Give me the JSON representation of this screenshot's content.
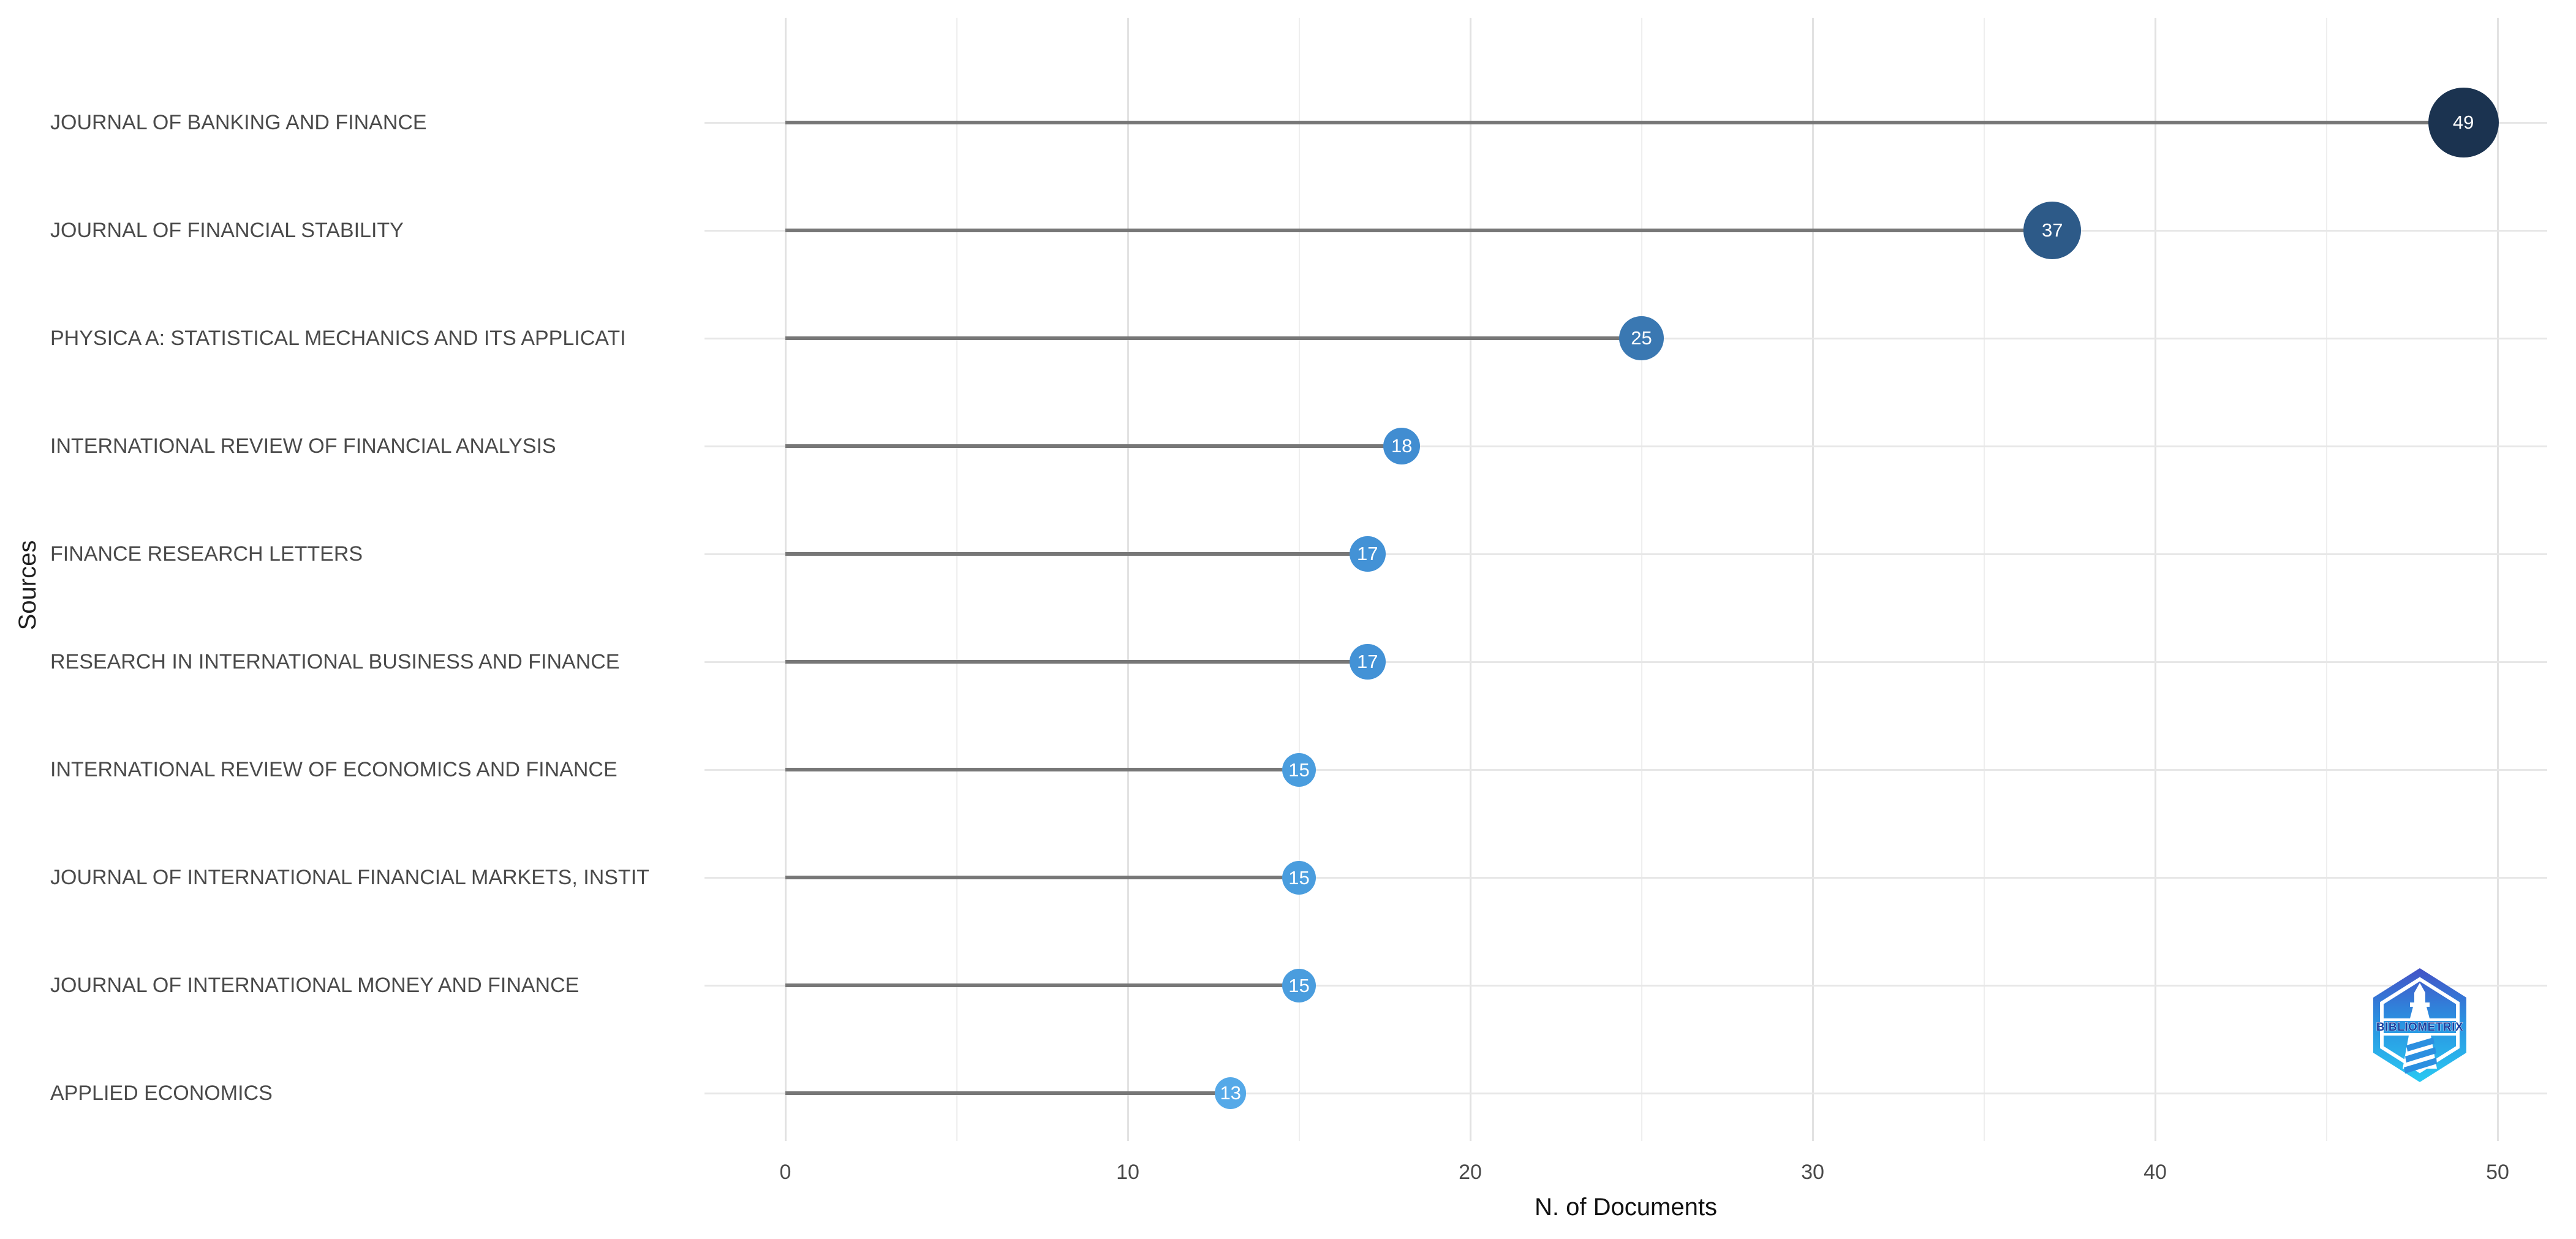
{
  "chart_data": {
    "type": "lollipop",
    "orientation": "horizontal",
    "title": "",
    "xlabel": "N. of Documents",
    "ylabel": "Sources",
    "categories": [
      "JOURNAL OF BANKING AND FINANCE",
      "JOURNAL OF FINANCIAL STABILITY",
      "PHYSICA A: STATISTICAL MECHANICS AND ITS APPLICATI",
      "INTERNATIONAL REVIEW OF FINANCIAL ANALYSIS",
      "FINANCE RESEARCH LETTERS",
      "RESEARCH IN INTERNATIONAL BUSINESS AND FINANCE",
      "INTERNATIONAL REVIEW OF ECONOMICS AND FINANCE",
      "JOURNAL OF INTERNATIONAL FINANCIAL MARKETS, INSTIT",
      "JOURNAL OF INTERNATIONAL MONEY AND FINANCE",
      "APPLIED ECONOMICS"
    ],
    "values": [
      49,
      37,
      25,
      18,
      17,
      17,
      15,
      15,
      15,
      13
    ],
    "dot_colors": [
      "#1b3350",
      "#2d5a88",
      "#3a78b2",
      "#418dd1",
      "#4392d6",
      "#4392d6",
      "#4a9dde",
      "#4a9dde",
      "#4a9dde",
      "#55a9e8"
    ],
    "x_ticks": [
      0,
      10,
      20,
      30,
      40,
      50
    ],
    "x_minor_ticks": [
      5,
      15,
      25,
      35,
      45
    ],
    "xlim": [
      -2.4,
      51.5
    ],
    "grid": true,
    "legend": "none",
    "colors": {
      "background": "#ffffff",
      "stem": "#777777",
      "grid_major": "#e2e2e2",
      "grid_minor": "#eeeeee",
      "grid_row": "#e7e7e7",
      "axis_text": "#4a4a4a",
      "axis_title": "#1f1f1f",
      "dot_text": "#ffffff"
    }
  },
  "logo": {
    "label": "BIBLIOMETRIX",
    "shape": "hexagon-badge-with-lighthouse",
    "gradient_top": "#4452c6",
    "gradient_mid": "#2b8fe0",
    "gradient_bottom": "#29c9f2",
    "text_color": "#1c3f9e"
  }
}
